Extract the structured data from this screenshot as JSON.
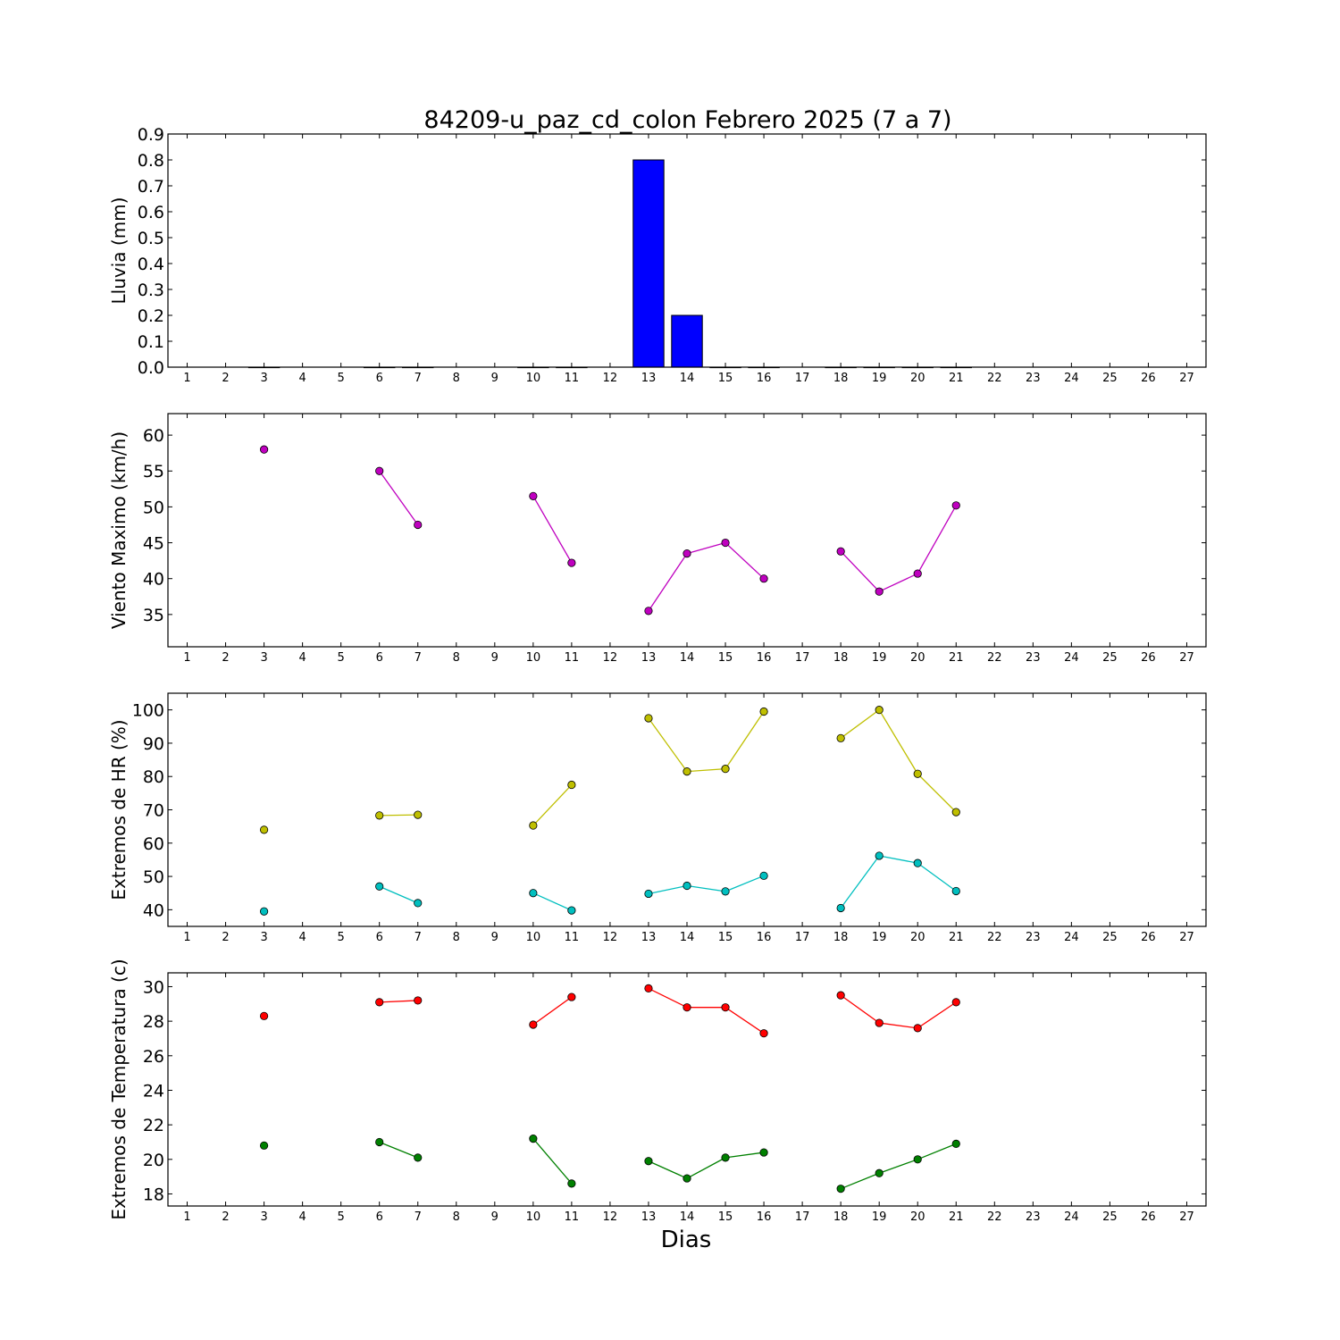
{
  "title": "84209-u_paz_cd_colon Febrero 2025  (7 a 7)",
  "xlabel": "Dias",
  "chart_data": [
    {
      "type": "bar",
      "ylabel": "Lluvia (mm)",
      "ylim": [
        0,
        0.9
      ],
      "yticks": [
        0.0,
        0.1,
        0.2,
        0.3,
        0.4,
        0.5,
        0.6,
        0.7,
        0.8,
        0.9
      ],
      "ytick_labels": [
        "0.0",
        "0.1",
        "0.2",
        "0.3",
        "0.4",
        "0.5",
        "0.6",
        "0.7",
        "0.8",
        "0.9"
      ],
      "xlim": [
        0.5,
        27.5
      ],
      "xticks": [
        1,
        2,
        3,
        4,
        5,
        6,
        7,
        8,
        9,
        10,
        11,
        12,
        13,
        14,
        15,
        16,
        17,
        18,
        19,
        20,
        21,
        22,
        23,
        24,
        25,
        26,
        27
      ],
      "series": [
        {
          "color": "#0000ff",
          "points": [
            [
              3,
              0
            ],
            [
              6,
              0
            ],
            [
              7,
              0
            ],
            [
              10,
              0
            ],
            [
              11,
              0
            ],
            [
              13,
              0.8
            ],
            [
              14,
              0.2
            ],
            [
              15,
              0
            ],
            [
              16,
              0
            ],
            [
              18,
              0
            ],
            [
              19,
              0
            ],
            [
              20,
              0
            ],
            [
              21,
              0
            ]
          ]
        }
      ]
    },
    {
      "type": "line",
      "ylabel": "Viento Maximo (km/h)",
      "ylim": [
        30.5,
        63
      ],
      "yticks": [
        35,
        40,
        45,
        50,
        55,
        60
      ],
      "ytick_labels": [
        "35",
        "40",
        "45",
        "50",
        "55",
        "60"
      ],
      "xlim": [
        0.5,
        27.5
      ],
      "xticks": [
        1,
        2,
        3,
        4,
        5,
        6,
        7,
        8,
        9,
        10,
        11,
        12,
        13,
        14,
        15,
        16,
        17,
        18,
        19,
        20,
        21,
        22,
        23,
        24,
        25,
        26,
        27
      ],
      "series": [
        {
          "color": "#bf00bf",
          "points": [
            [
              3,
              58
            ],
            [
              6,
              55
            ],
            [
              7,
              47.5
            ],
            [
              10,
              51.5
            ],
            [
              11,
              42.2
            ],
            [
              13,
              35.5
            ],
            [
              14,
              43.5
            ],
            [
              15,
              45
            ],
            [
              16,
              40
            ],
            [
              18,
              43.8
            ],
            [
              19,
              38.2
            ],
            [
              20,
              40.7
            ],
            [
              21,
              50.2
            ]
          ]
        }
      ]
    },
    {
      "type": "line",
      "ylabel": "Extremos de HR (%)",
      "ylim": [
        35,
        105
      ],
      "yticks": [
        40,
        50,
        60,
        70,
        80,
        90,
        100
      ],
      "ytick_labels": [
        "40",
        "50",
        "60",
        "70",
        "80",
        "90",
        "100"
      ],
      "xlim": [
        0.5,
        27.5
      ],
      "xticks": [
        1,
        2,
        3,
        4,
        5,
        6,
        7,
        8,
        9,
        10,
        11,
        12,
        13,
        14,
        15,
        16,
        17,
        18,
        19,
        20,
        21,
        22,
        23,
        24,
        25,
        26,
        27
      ],
      "series": [
        {
          "color": "#bfbf00",
          "points": [
            [
              3,
              64
            ],
            [
              6,
              68.3
            ],
            [
              7,
              68.5
            ],
            [
              10,
              65.3
            ],
            [
              11,
              77.5
            ],
            [
              13,
              97.5
            ],
            [
              14,
              81.5
            ],
            [
              15,
              82.3
            ],
            [
              16,
              99.5
            ],
            [
              18,
              91.5
            ],
            [
              19,
              100
            ],
            [
              20,
              80.8
            ],
            [
              21,
              69.3
            ]
          ]
        },
        {
          "color": "#00bfbf",
          "points": [
            [
              3,
              39.5
            ],
            [
              6,
              47
            ],
            [
              7,
              42
            ],
            [
              10,
              45
            ],
            [
              11,
              39.8
            ],
            [
              13,
              44.8
            ],
            [
              14,
              47.2
            ],
            [
              15,
              45.5
            ],
            [
              16,
              50.2
            ],
            [
              18,
              40.5
            ],
            [
              19,
              56.2
            ],
            [
              20,
              54
            ],
            [
              21,
              45.6
            ]
          ]
        }
      ]
    },
    {
      "type": "line",
      "ylabel": "Extremos de Temperatura (c)",
      "ylim": [
        17.3,
        30.8
      ],
      "yticks": [
        18,
        20,
        22,
        24,
        26,
        28,
        30
      ],
      "ytick_labels": [
        "18",
        "20",
        "22",
        "24",
        "26",
        "28",
        "30"
      ],
      "xlim": [
        0.5,
        27.5
      ],
      "xticks": [
        1,
        2,
        3,
        4,
        5,
        6,
        7,
        8,
        9,
        10,
        11,
        12,
        13,
        14,
        15,
        16,
        17,
        18,
        19,
        20,
        21,
        22,
        23,
        24,
        25,
        26,
        27
      ],
      "series": [
        {
          "color": "#ff0000",
          "points": [
            [
              3,
              28.3
            ],
            [
              6,
              29.1
            ],
            [
              7,
              29.2
            ],
            [
              10,
              27.8
            ],
            [
              11,
              29.4
            ],
            [
              13,
              29.9
            ],
            [
              14,
              28.8
            ],
            [
              15,
              28.8
            ],
            [
              16,
              27.3
            ],
            [
              18,
              29.5
            ],
            [
              19,
              27.9
            ],
            [
              20,
              27.6
            ],
            [
              21,
              29.1
            ]
          ]
        },
        {
          "color": "#008000",
          "points": [
            [
              3,
              20.8
            ],
            [
              6,
              21
            ],
            [
              7,
              20.1
            ],
            [
              10,
              21.2
            ],
            [
              11,
              18.6
            ],
            [
              13,
              19.9
            ],
            [
              14,
              18.9
            ],
            [
              15,
              20.1
            ],
            [
              16,
              20.4
            ],
            [
              18,
              18.3
            ],
            [
              19,
              19.2
            ],
            [
              20,
              20
            ],
            [
              21,
              20.9
            ]
          ]
        }
      ]
    }
  ]
}
